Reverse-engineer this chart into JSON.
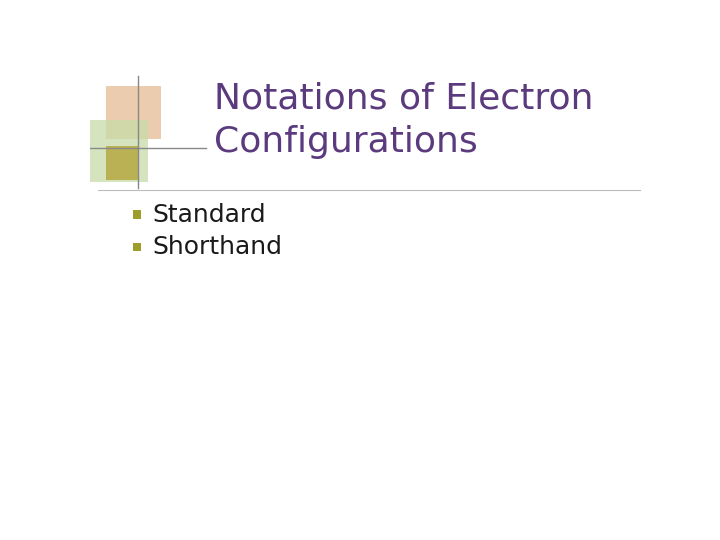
{
  "title_line1": "Notations of Electron",
  "title_line2": "Configurations",
  "title_color": "#5b3a7e",
  "bullet_items": [
    "Standard",
    "Shorthand"
  ],
  "bullet_color": "#1a1a1a",
  "bullet_marker_color": "#9e9c2a",
  "background_color": "#ffffff",
  "divider_color": "#bbbbbb",
  "sq1_color": "#e8c4a0",
  "sq1_alpha": 0.85,
  "sq2_color": "#c8dca8",
  "sq2_alpha": 0.75,
  "sq3_color": "#b0a030",
  "sq3_alpha": 0.75,
  "line_color": "#888888",
  "title_fontsize": 26,
  "bullet_fontsize": 18
}
